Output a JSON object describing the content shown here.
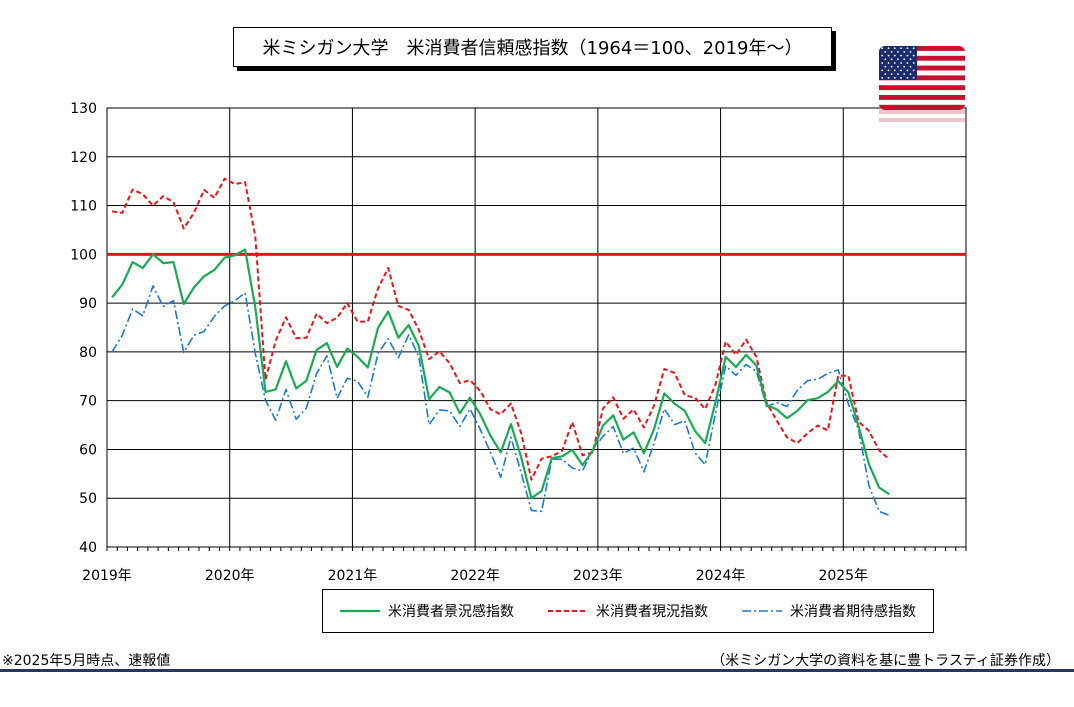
{
  "title": "米ミシガン大学　米消費者信頼感指数（1964＝100、2019年～）",
  "note": "※2025年5月時点、速報値",
  "source": "（米ミシガン大学の資料を基に豊トラスティ証券作成）",
  "colors": {
    "sentiment": "#1aaa55",
    "current": "#e8141c",
    "expectations": "#1e78d2",
    "reference": "#e8141c",
    "grid": "#000000"
  },
  "chart_data": {
    "type": "line",
    "ylim": [
      40,
      130
    ],
    "yticks": [
      40,
      50,
      60,
      70,
      80,
      90,
      100,
      110,
      120,
      130
    ],
    "x_start": "2019-01",
    "xlim_years": [
      2019,
      2026
    ],
    "x_labels": [
      "2019年",
      "2020年",
      "2021年",
      "2022年",
      "2023年",
      "2024年",
      "2025年"
    ],
    "reference_line": 100,
    "grid": true,
    "legend_position": "bottom",
    "series": [
      {
        "name": "米消費者景況感指数",
        "key": "sentiment",
        "values": [
          91.2,
          93.8,
          98.4,
          97.2,
          100.0,
          98.2,
          98.4,
          89.8,
          93.2,
          95.5,
          96.8,
          99.3,
          99.8,
          101.0,
          89.1,
          71.8,
          72.3,
          78.1,
          72.5,
          74.1,
          80.4,
          81.8,
          76.9,
          80.7,
          79.0,
          76.8,
          84.9,
          88.3,
          82.9,
          85.5,
          81.2,
          70.3,
          72.8,
          71.7,
          67.4,
          70.6,
          67.2,
          62.8,
          59.4,
          65.2,
          58.4,
          50.0,
          51.5,
          58.2,
          58.6,
          59.9,
          56.8,
          59.7,
          64.9,
          67.0,
          62.0,
          63.5,
          59.2,
          64.2,
          71.5,
          69.4,
          67.9,
          63.8,
          61.3,
          69.7,
          79.0,
          76.9,
          79.4,
          77.2,
          69.1,
          68.2,
          66.4,
          67.9,
          70.1,
          70.5,
          71.8,
          74.0,
          71.7,
          64.7,
          57.0,
          52.2,
          50.8
        ]
      },
      {
        "name": "米消費者現況指数",
        "key": "current",
        "values": [
          108.8,
          108.5,
          113.3,
          112.3,
          110.0,
          111.9,
          110.7,
          105.3,
          108.5,
          113.2,
          111.6,
          115.5,
          114.4,
          114.8,
          103.7,
          74.3,
          82.3,
          87.1,
          82.8,
          82.9,
          87.8,
          85.9,
          87.0,
          90.0,
          86.2,
          86.2,
          93.0,
          97.2,
          89.4,
          88.6,
          84.5,
          78.5,
          80.1,
          77.7,
          73.6,
          74.2,
          72.0,
          68.2,
          67.2,
          69.4,
          63.3,
          53.8,
          58.1,
          58.6,
          59.7,
          65.6,
          58.8,
          59.4,
          68.4,
          70.7,
          66.3,
          68.2,
          64.5,
          69.0,
          76.5,
          75.7,
          71.1,
          70.6,
          68.3,
          73.3,
          82.1,
          79.4,
          82.5,
          79.0,
          69.6,
          65.9,
          62.5,
          61.3,
          63.3,
          64.9,
          63.9,
          75.1,
          75.1,
          65.7,
          63.8,
          59.8,
          58.0
        ]
      },
      {
        "name": "米消費者期待感指数",
        "key": "expectations",
        "values": [
          80.0,
          83.4,
          88.8,
          87.4,
          93.5,
          89.3,
          90.5,
          79.9,
          83.4,
          84.2,
          87.3,
          89.4,
          90.5,
          92.1,
          79.7,
          70.1,
          66.0,
          72.3,
          66.2,
          68.5,
          75.6,
          79.2,
          70.5,
          74.6,
          74.0,
          70.7,
          79.7,
          82.7,
          78.8,
          83.5,
          79.0,
          65.1,
          68.1,
          67.9,
          64.7,
          68.3,
          64.1,
          59.4,
          54.3,
          62.5,
          55.2,
          47.5,
          47.3,
          58.0,
          58.0,
          56.2,
          55.6,
          59.9,
          62.7,
          64.7,
          59.2,
          60.3,
          55.4,
          61.3,
          68.3,
          65.1,
          65.9,
          59.3,
          56.9,
          67.4,
          77.1,
          75.2,
          77.4,
          76.0,
          68.8,
          69.6,
          68.8,
          72.1,
          74.1,
          74.4,
          75.6,
          76.3,
          69.3,
          64.0,
          52.6,
          47.3,
          46.5
        ]
      }
    ]
  }
}
